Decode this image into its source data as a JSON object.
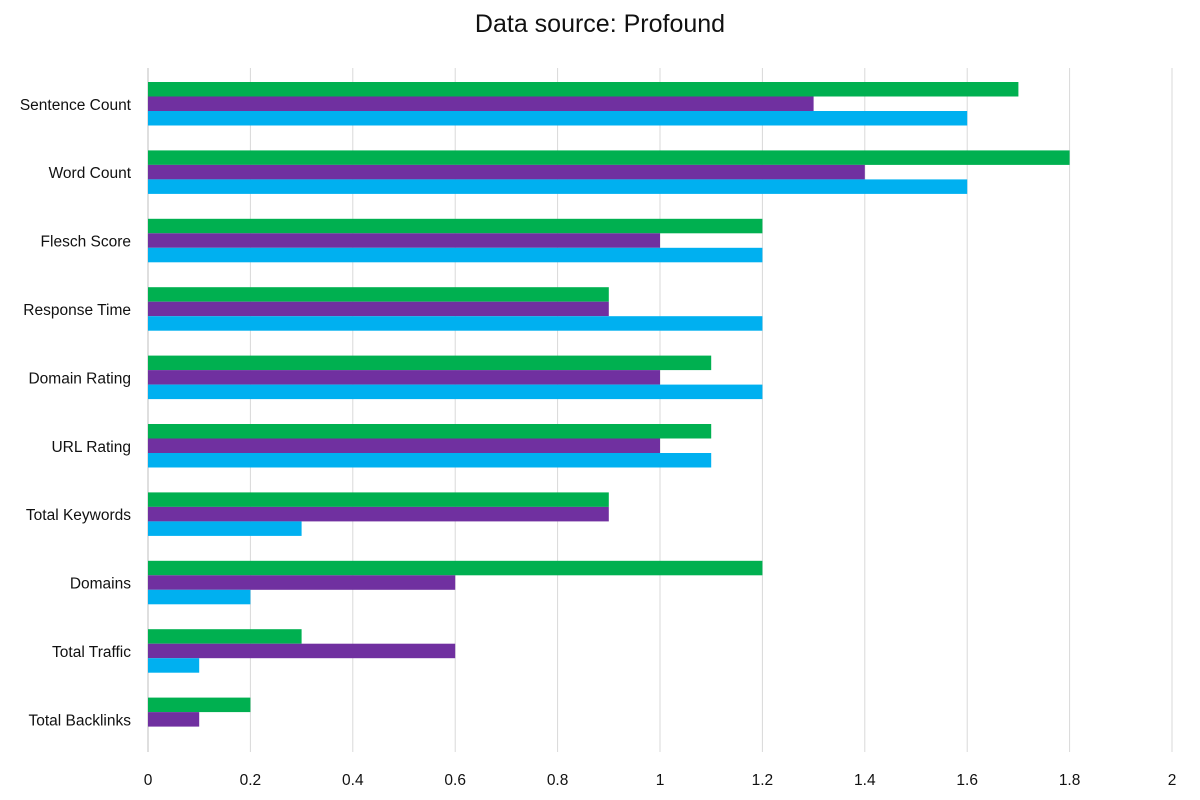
{
  "chart_data": {
    "type": "bar",
    "orientation": "horizontal",
    "title": "",
    "subtitle": "Data source: Profound",
    "xlabel": "",
    "ylabel": "",
    "xlim": [
      0,
      2
    ],
    "x_ticks": [
      "0",
      "0.2",
      "0.4",
      "0.6",
      "0.8",
      "1",
      "1.2",
      "1.4",
      "1.6",
      "1.8",
      "2"
    ],
    "grid": "vertical",
    "legend": "none",
    "categories": [
      "Sentence Count",
      "Word Count",
      "Flesch Score",
      "Response Time",
      "Domain Rating",
      "URL Rating",
      "Total Keywords",
      "Domains",
      "Total Traffic",
      "Total Backlinks"
    ],
    "series": [
      {
        "color": "#00B050",
        "values": [
          1.7,
          1.8,
          1.2,
          0.9,
          1.1,
          1.1,
          0.9,
          1.2,
          0.3,
          0.2
        ]
      },
      {
        "color": "#7030A0",
        "values": [
          1.3,
          1.4,
          1.0,
          0.9,
          1.0,
          1.0,
          0.9,
          0.6,
          0.6,
          0.1
        ]
      },
      {
        "color": "#00B0F0",
        "values": [
          1.6,
          1.6,
          1.2,
          1.2,
          1.2,
          1.1,
          0.3,
          0.2,
          0.1,
          0
        ]
      }
    ]
  }
}
